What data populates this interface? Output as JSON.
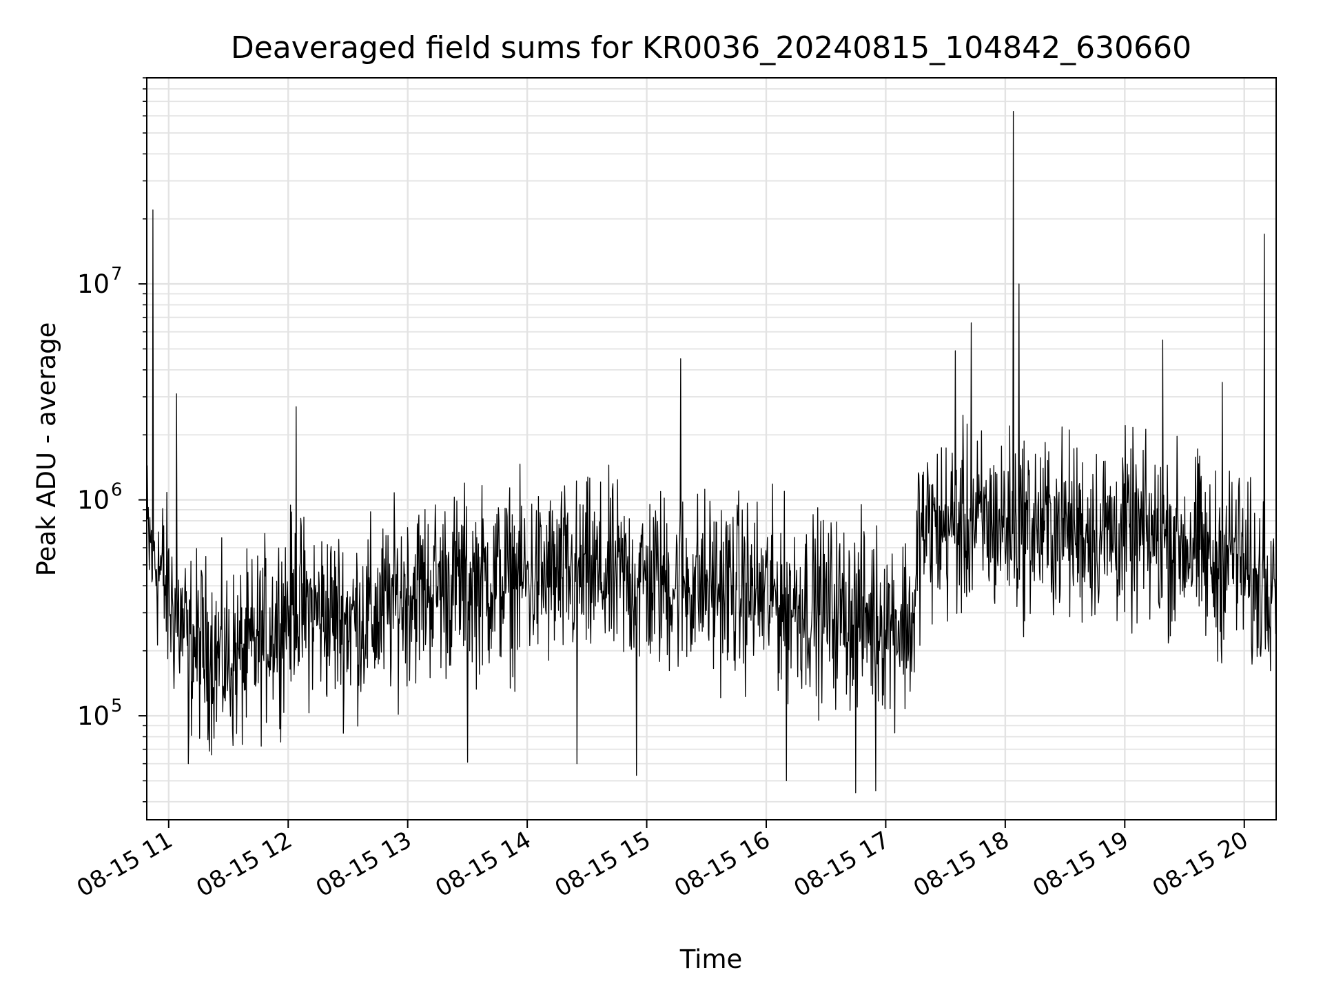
{
  "chart_data": {
    "type": "line",
    "title": "Deaveraged field sums for KR0036_20240815_104842_630660",
    "xlabel": "Time",
    "ylabel": "Peak ADU - average",
    "x_ticks": [
      "08-15 11",
      "08-15 12",
      "08-15 13",
      "08-15 14",
      "08-15 15",
      "08-15 16",
      "08-15 17",
      "08-15 18",
      "08-15 19",
      "08-15 20"
    ],
    "x_range": [
      "2024-08-15 10:49",
      "2024-08-15 20:16"
    ],
    "y_scale": "log",
    "y_ticks": [
      {
        "value": 100000,
        "base": "10",
        "exp": "5"
      },
      {
        "value": 1000000,
        "base": "10",
        "exp": "6"
      },
      {
        "value": 10000000,
        "base": "10",
        "exp": "7"
      }
    ],
    "ylim": [
      33000,
      90000000
    ],
    "grid": true,
    "line_color": "#000000",
    "series": [
      {
        "x": [
          "2024-08-15 10:49",
          "2024-08-15 10:55",
          "2024-08-15 11:00",
          "2024-08-15 11:10",
          "2024-08-15 11:20",
          "2024-08-15 11:30",
          "2024-08-15 11:40",
          "2024-08-15 11:50",
          "2024-08-15 12:00",
          "2024-08-15 12:15",
          "2024-08-15 12:30",
          "2024-08-15 12:45",
          "2024-08-15 13:00",
          "2024-08-15 13:20",
          "2024-08-15 13:40",
          "2024-08-15 14:00",
          "2024-08-15 14:20",
          "2024-08-15 14:40",
          "2024-08-15 15:00",
          "2024-08-15 15:20",
          "2024-08-15 15:40",
          "2024-08-15 16:00",
          "2024-08-15 16:20",
          "2024-08-15 16:40",
          "2024-08-15 17:00",
          "2024-08-15 17:15",
          "2024-08-15 17:16",
          "2024-08-15 17:30",
          "2024-08-15 17:45",
          "2024-08-15 18:00",
          "2024-08-15 18:15",
          "2024-08-15 18:30",
          "2024-08-15 18:45",
          "2024-08-15 19:00",
          "2024-08-15 19:20",
          "2024-08-15 19:35",
          "2024-08-15 19:45",
          "2024-08-15 19:55",
          "2024-08-15 20:05",
          "2024-08-15 20:16"
        ],
        "y": [
          650000,
          500000,
          350000,
          220000,
          200000,
          180000,
          190000,
          250000,
          320000,
          300000,
          280000,
          290000,
          380000,
          410000,
          420000,
          430000,
          440000,
          440000,
          420000,
          410000,
          400000,
          360000,
          330000,
          300000,
          280000,
          270000,
          700000,
          750000,
          760000,
          780000,
          760000,
          740000,
          720000,
          700000,
          660000,
          620000,
          480000,
          600000,
          380000,
          560000
        ]
      }
    ],
    "spikes": [
      {
        "x": "2024-08-15 10:52",
        "y": 22000000
      },
      {
        "x": "2024-08-15 11:04",
        "y": 3100000
      },
      {
        "x": "2024-08-15 12:04",
        "y": 2700000
      },
      {
        "x": "2024-08-15 15:17",
        "y": 4500000
      },
      {
        "x": "2024-08-15 17:35",
        "y": 4900000
      },
      {
        "x": "2024-08-15 17:43",
        "y": 6600000
      },
      {
        "x": "2024-08-15 18:04",
        "y": 63000000
      },
      {
        "x": "2024-08-15 18:07",
        "y": 10000000
      },
      {
        "x": "2024-08-15 19:19",
        "y": 5500000
      },
      {
        "x": "2024-08-15 19:49",
        "y": 3500000
      },
      {
        "x": "2024-08-15 20:10",
        "y": 17000000
      }
    ],
    "dips": [
      {
        "x": "2024-08-15 11:10",
        "y": 60000
      },
      {
        "x": "2024-08-15 13:30",
        "y": 61000
      },
      {
        "x": "2024-08-15 14:25",
        "y": 60000
      },
      {
        "x": "2024-08-15 14:55",
        "y": 53000
      },
      {
        "x": "2024-08-15 16:10",
        "y": 50000
      },
      {
        "x": "2024-08-15 16:45",
        "y": 44000
      },
      {
        "x": "2024-08-15 16:55",
        "y": 45000
      }
    ]
  }
}
